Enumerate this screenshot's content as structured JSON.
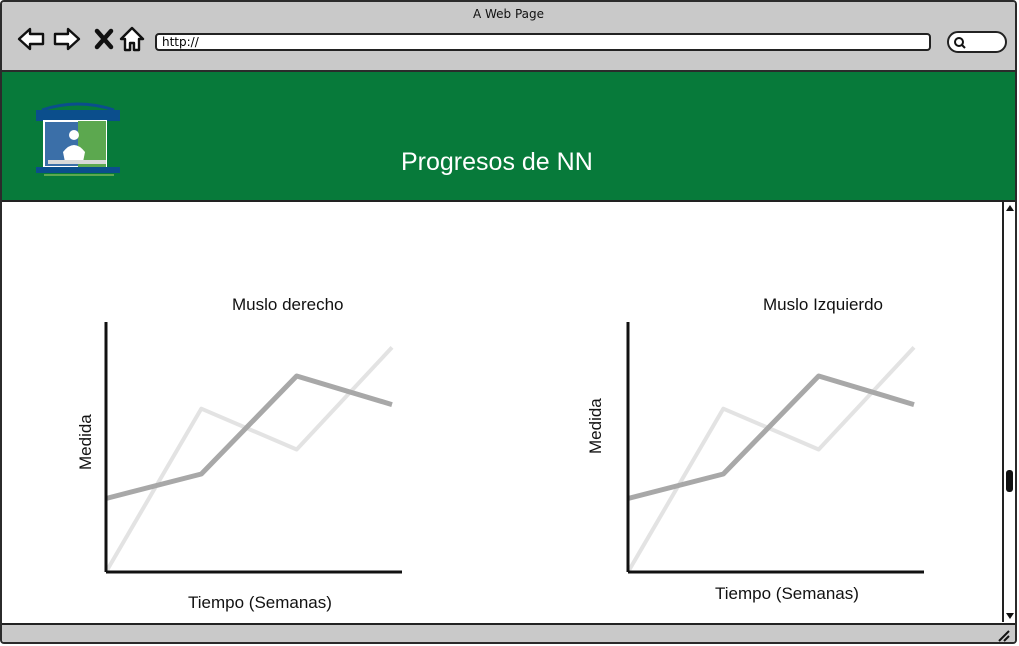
{
  "browser": {
    "window_title": "A Web Page",
    "url": "http://",
    "search_placeholder": ""
  },
  "header": {
    "title": "Progresos de NN",
    "bg_color": "#077a3a"
  },
  "chart_data": [
    {
      "type": "line",
      "title": "Muslo derecho",
      "xlabel": "Tiempo (Semanas)",
      "ylabel": "Medida",
      "x": [
        0,
        1,
        2,
        3
      ],
      "series": [
        {
          "values": [
            0,
            4,
            3,
            5.5
          ],
          "color": "#e3e3e3"
        },
        {
          "values": [
            1.8,
            2.4,
            4.8,
            4.1
          ],
          "color": "#a8a8a8"
        }
      ],
      "ylim": [
        0,
        6
      ]
    },
    {
      "type": "line",
      "title": "Muslo Izquierdo",
      "xlabel": "Tiempo (Semanas)",
      "ylabel": "Medida",
      "x": [
        0,
        1,
        2,
        3
      ],
      "series": [
        {
          "values": [
            0,
            4,
            3,
            5.5
          ],
          "color": "#e3e3e3"
        },
        {
          "values": [
            1.8,
            2.4,
            4.8,
            4.1
          ],
          "color": "#a8a8a8"
        }
      ],
      "ylim": [
        0,
        6
      ]
    }
  ]
}
